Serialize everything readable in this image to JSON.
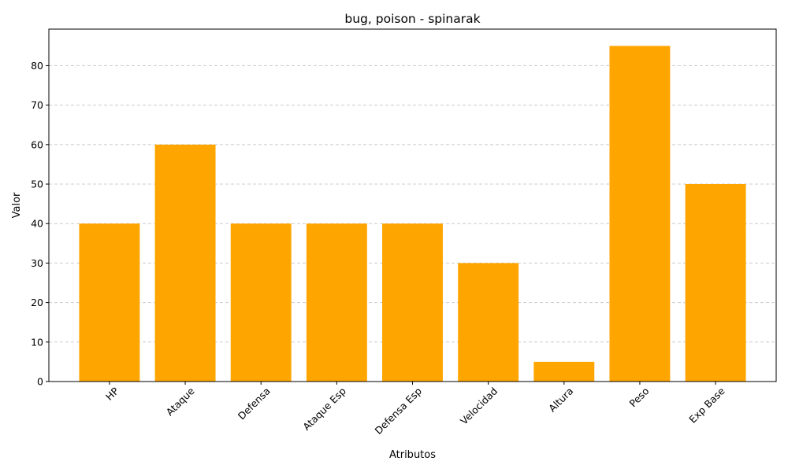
{
  "chart_data": {
    "type": "bar",
    "title": "bug, poison - spinarak",
    "xlabel": "Atributos",
    "ylabel": "Valor",
    "categories": [
      "HP",
      "Ataque",
      "Defensa",
      "Ataque Esp",
      "Defensa Esp",
      "Velocidad",
      "Altura",
      "Peso",
      "Exp Base"
    ],
    "values": [
      40,
      60,
      40,
      40,
      40,
      30,
      5,
      85,
      50
    ],
    "ylim": [
      0,
      89.25
    ],
    "yticks": [
      0,
      10,
      20,
      30,
      40,
      50,
      60,
      70,
      80
    ],
    "grid": "y-axis dashed",
    "bar_color": "#FFA500",
    "grid_color": "#cccccc"
  }
}
